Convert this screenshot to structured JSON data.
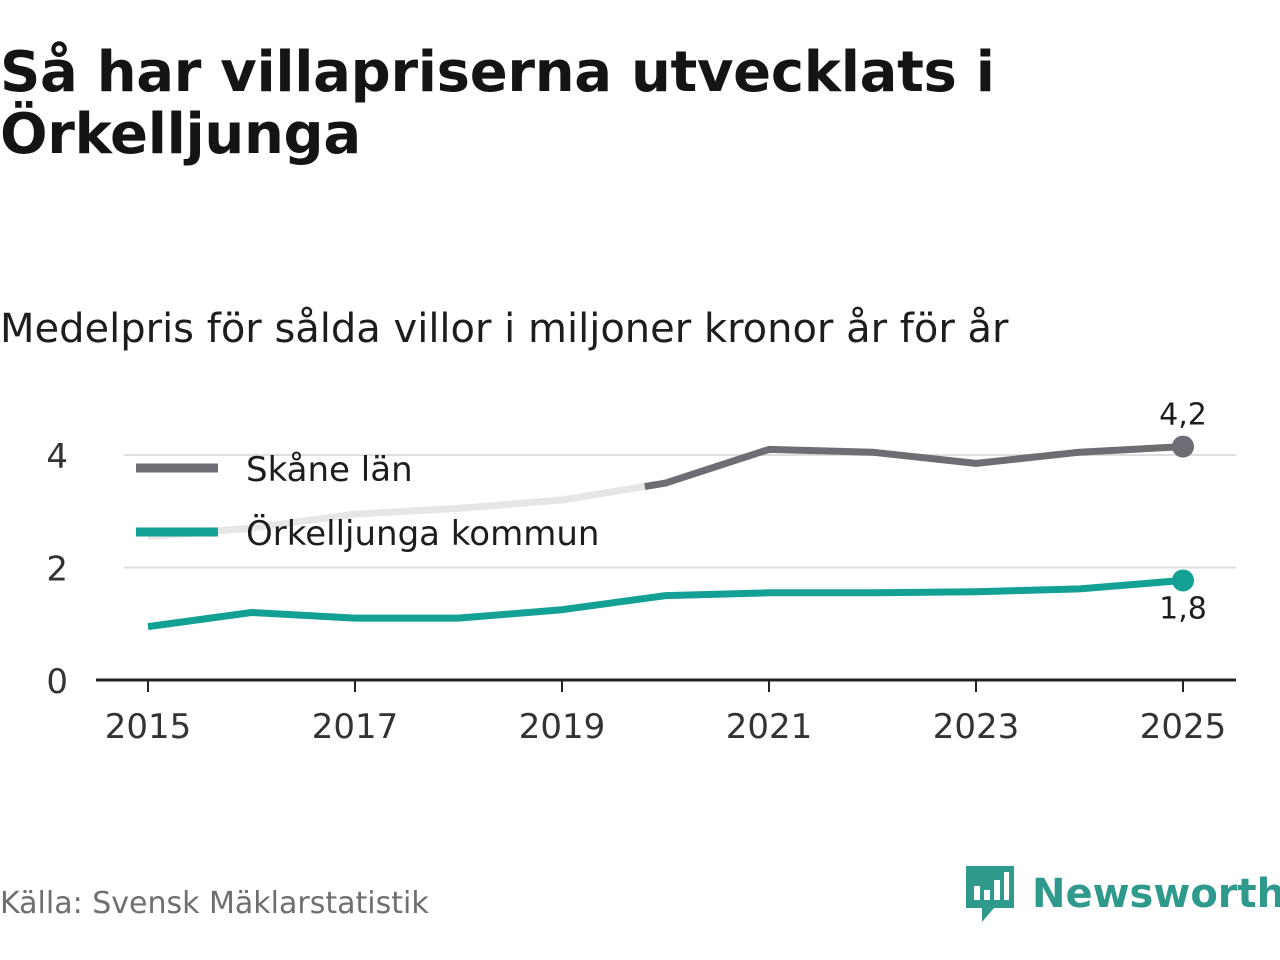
{
  "title": "Så har villapriserna utvecklats i Örkelljunga",
  "subtitle": "Medelpris för sålda villor i miljoner kronor år för år",
  "source": "Källa: Svensk Mäklarstatistik",
  "brand": {
    "name": "Newsworthy",
    "color": "#2f9a8c",
    "icon": "newsworthy-logo-icon"
  },
  "colors": {
    "skane": "#6e6d73",
    "skane_faded": "#e6e6e6",
    "orkelljunga": "#13a095",
    "grid": "#dedede",
    "axis": "#222222"
  },
  "chart_data": {
    "type": "line",
    "title": "Så har villapriserna utvecklats i Örkelljunga",
    "subtitle": "Medelpris för sålda villor i miljoner kronor år för år",
    "xlabel": "",
    "ylabel": "",
    "x": [
      2015,
      2016,
      2017,
      2018,
      2019,
      2020,
      2021,
      2022,
      2023,
      2024,
      2025
    ],
    "x_ticks": [
      "2015",
      "2017",
      "2019",
      "2021",
      "2023",
      "2025"
    ],
    "y_ticks": [
      "0",
      "2",
      "4"
    ],
    "ylim": [
      0,
      4.5
    ],
    "grid": true,
    "legend_position": "top-left",
    "series": [
      {
        "name": "Skåne län",
        "values": [
          2.55,
          2.7,
          2.95,
          3.05,
          3.2,
          3.5,
          4.1,
          4.05,
          3.85,
          4.05,
          4.15
        ],
        "faded_until": 2019.8,
        "end_label": "4,2"
      },
      {
        "name": "Örkelljunga kommun",
        "values": [
          0.95,
          1.2,
          1.1,
          1.1,
          1.25,
          1.5,
          1.55,
          1.55,
          1.57,
          1.62,
          1.77
        ],
        "end_label": "1,8"
      }
    ]
  }
}
